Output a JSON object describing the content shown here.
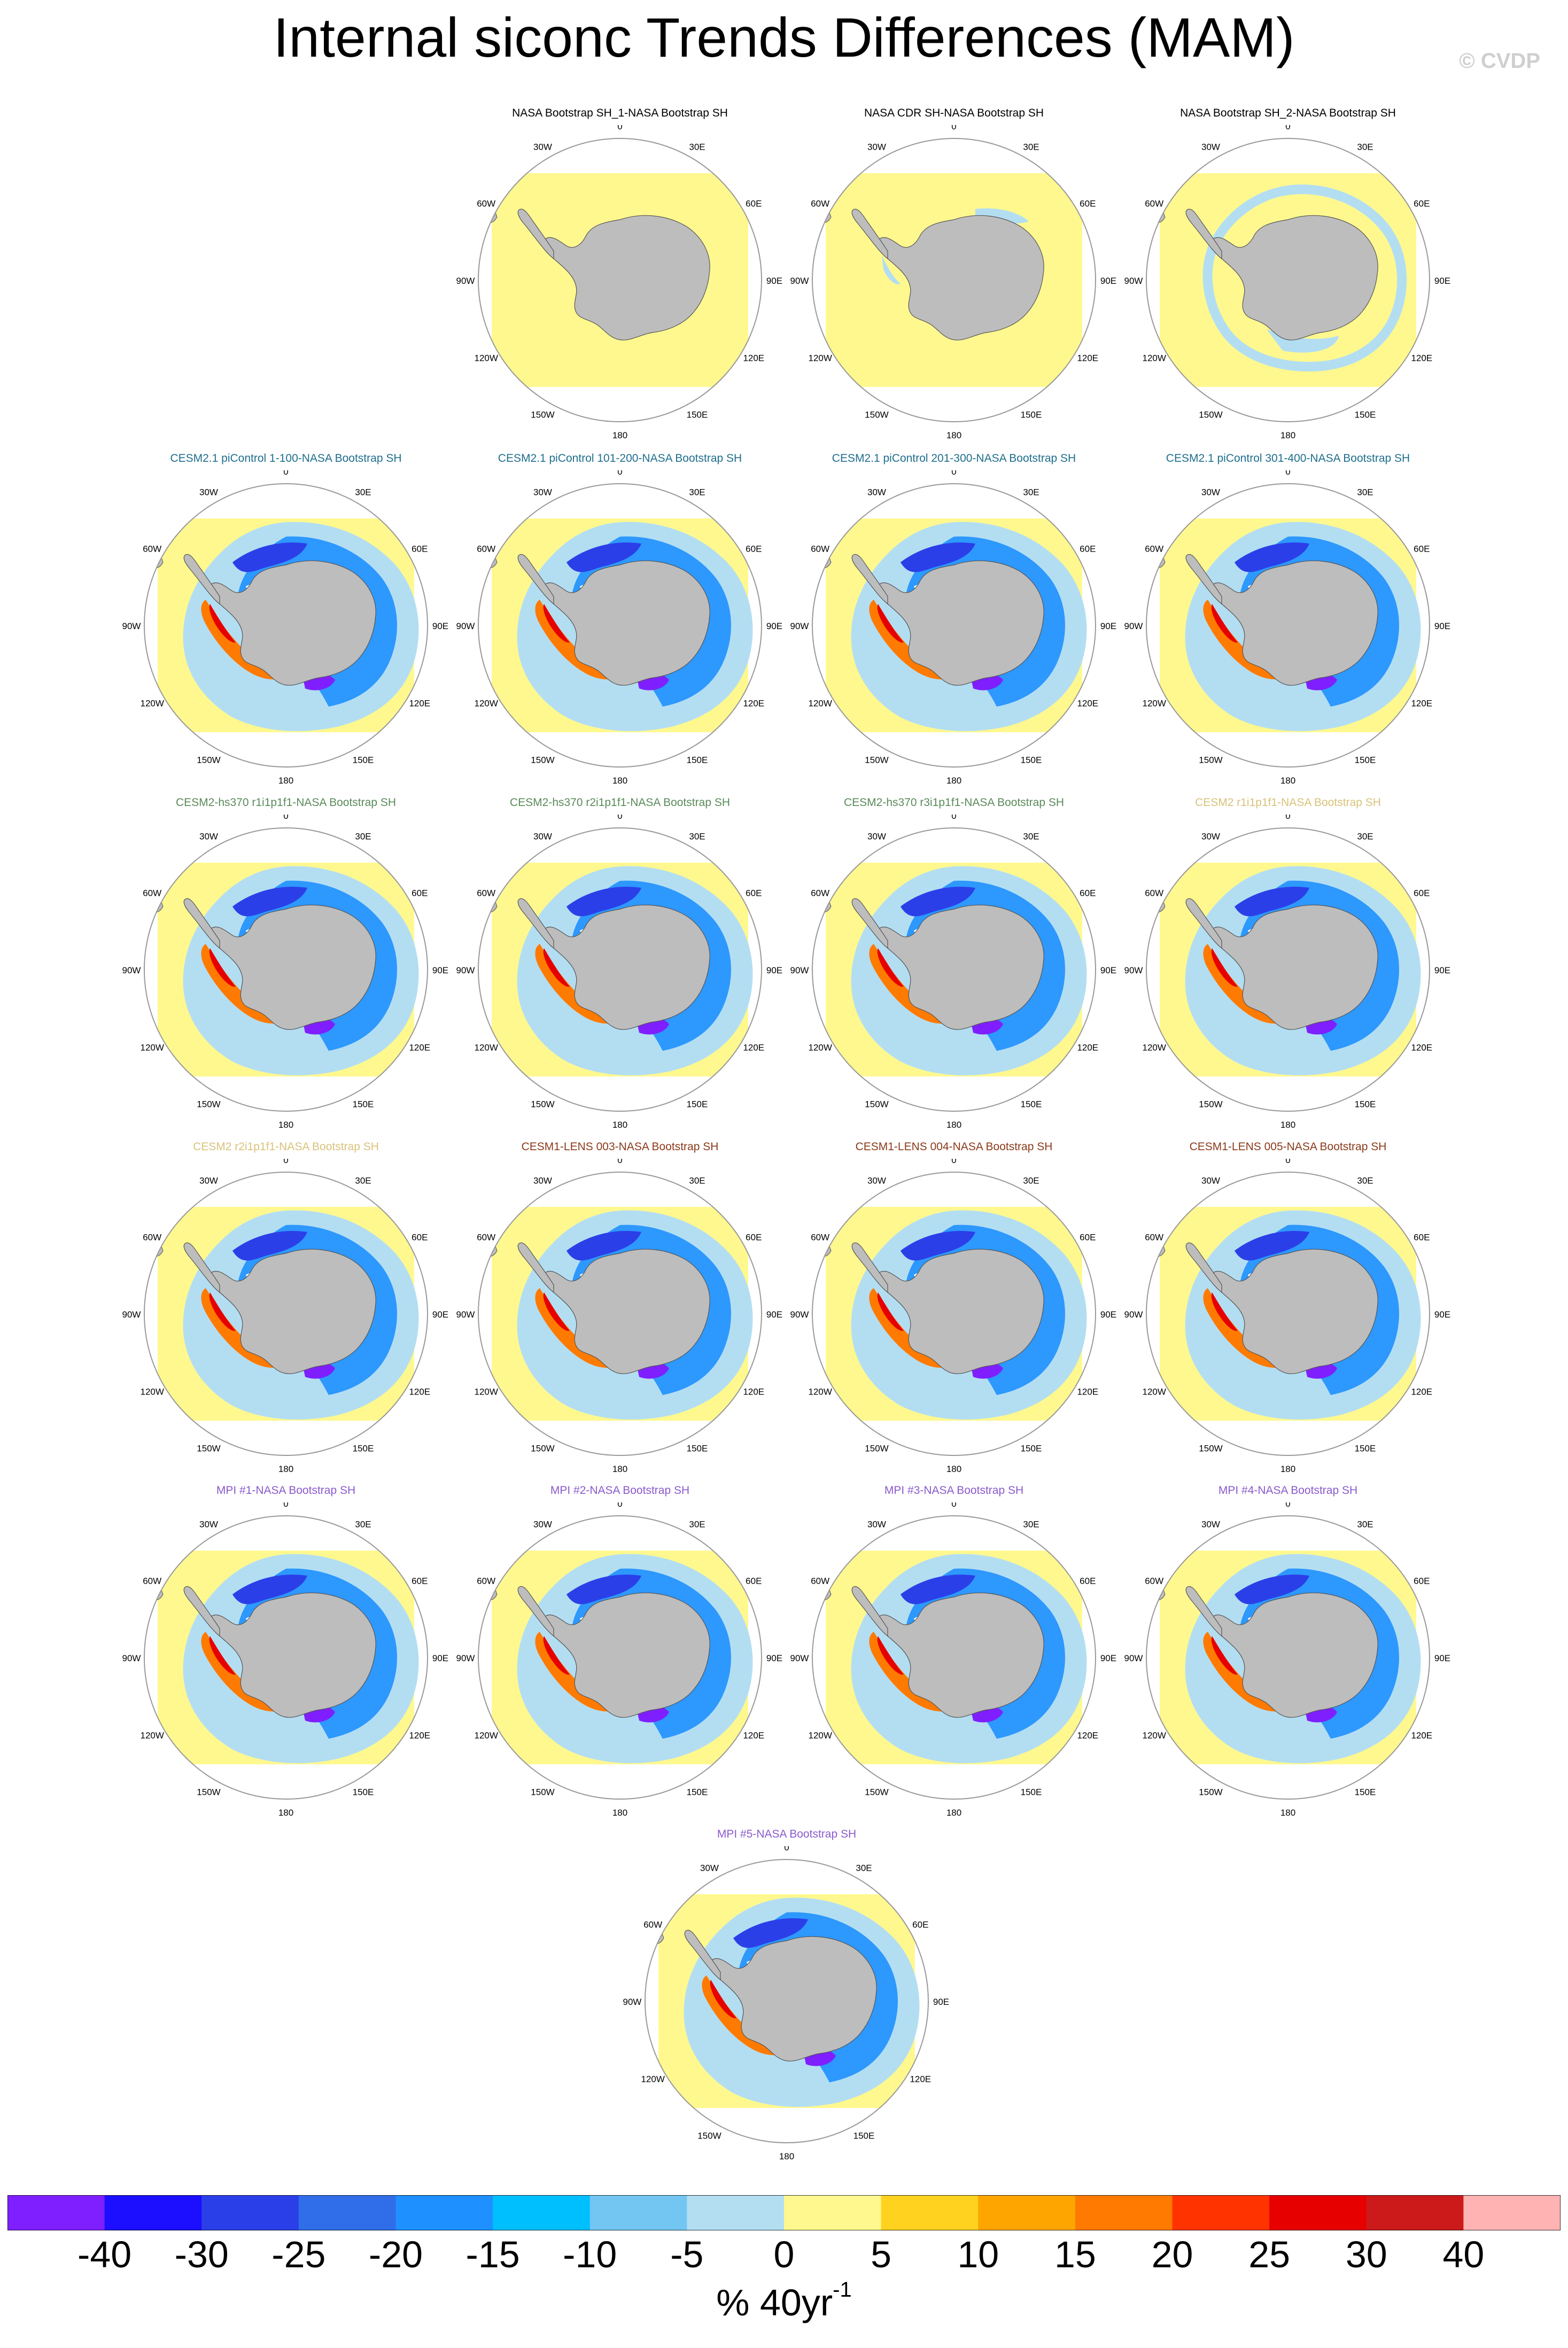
{
  "title": "Internal siconc Trends Differences (MAM)",
  "credit": "© CVDP",
  "map_labels": {
    "lon0": "0",
    "lon30E": "30E",
    "lon60E": "60E",
    "lon90E": "90E",
    "lon120E": "120E",
    "lon150E": "150E",
    "lon180": "180",
    "lon150W": "150W",
    "lon120W": "120W",
    "lon90W": "90W",
    "lon60W": "60W",
    "lon30W": "30W"
  },
  "panels": [
    {
      "title": "NASA Bootstrap SH_1-NASA Bootstrap SH",
      "color": "#000000",
      "style": "obs1"
    },
    {
      "title": "NASA CDR SH-NASA Bootstrap SH",
      "color": "#000000",
      "style": "obs2"
    },
    {
      "title": "NASA Bootstrap SH_2-NASA Bootstrap SH",
      "color": "#000000",
      "style": "obs3"
    },
    {
      "title": "CESM2.1 piControl 1-100-NASA Bootstrap SH",
      "color": "#1e6e8c",
      "style": "model"
    },
    {
      "title": "CESM2.1 piControl 101-200-NASA Bootstrap SH",
      "color": "#1e6e8c",
      "style": "model"
    },
    {
      "title": "CESM2.1 piControl 201-300-NASA Bootstrap SH",
      "color": "#1e6e8c",
      "style": "model"
    },
    {
      "title": "CESM2.1 piControl 301-400-NASA Bootstrap SH",
      "color": "#1e6e8c",
      "style": "model"
    },
    {
      "title": "CESM2-hs370 r1i1p1f1-NASA Bootstrap SH",
      "color": "#5a8a5a",
      "style": "model"
    },
    {
      "title": "CESM2-hs370 r2i1p1f1-NASA Bootstrap SH",
      "color": "#5a8a5a",
      "style": "model"
    },
    {
      "title": "CESM2-hs370 r3i1p1f1-NASA Bootstrap SH",
      "color": "#5a8a5a",
      "style": "model"
    },
    {
      "title": "CESM2 r1i1p1f1-NASA Bootstrap SH",
      "color": "#d9c27a",
      "style": "model"
    },
    {
      "title": "CESM2 r2i1p1f1-NASA Bootstrap SH",
      "color": "#d9c27a",
      "style": "model"
    },
    {
      "title": "CESM1-LENS 003-NASA Bootstrap SH",
      "color": "#8b3a1a",
      "style": "model"
    },
    {
      "title": "CESM1-LENS 004-NASA Bootstrap SH",
      "color": "#8b3a1a",
      "style": "model"
    },
    {
      "title": "CESM1-LENS 005-NASA Bootstrap SH",
      "color": "#8b3a1a",
      "style": "model"
    },
    {
      "title": "MPI #1-NASA Bootstrap SH",
      "color": "#8a5acd",
      "style": "model"
    },
    {
      "title": "MPI #2-NASA Bootstrap SH",
      "color": "#8a5acd",
      "style": "model"
    },
    {
      "title": "MPI #3-NASA Bootstrap SH",
      "color": "#8a5acd",
      "style": "model"
    },
    {
      "title": "MPI #4-NASA Bootstrap SH",
      "color": "#8a5acd",
      "style": "model"
    },
    {
      "title": "MPI #5-NASA Bootstrap SH",
      "color": "#8a5acd",
      "style": "model"
    }
  ],
  "colorbar": {
    "colors": [
      "#7f1fff",
      "#1c0fff",
      "#2b3fe8",
      "#2f6ee8",
      "#1e90ff",
      "#00bfff",
      "#73c6f2",
      "#b3def2",
      "#fff88f",
      "#ffd21f",
      "#ffa500",
      "#ff7a00",
      "#ff3300",
      "#e60000",
      "#cc1a1a",
      "#ffb3b3"
    ],
    "labels": [
      "-40",
      "-30",
      "-25",
      "-20",
      "-15",
      "-10",
      "-5",
      "0",
      "5",
      "10",
      "15",
      "20",
      "25",
      "30",
      "40"
    ],
    "units": "% 40yr",
    "units_exp": "-1"
  }
}
